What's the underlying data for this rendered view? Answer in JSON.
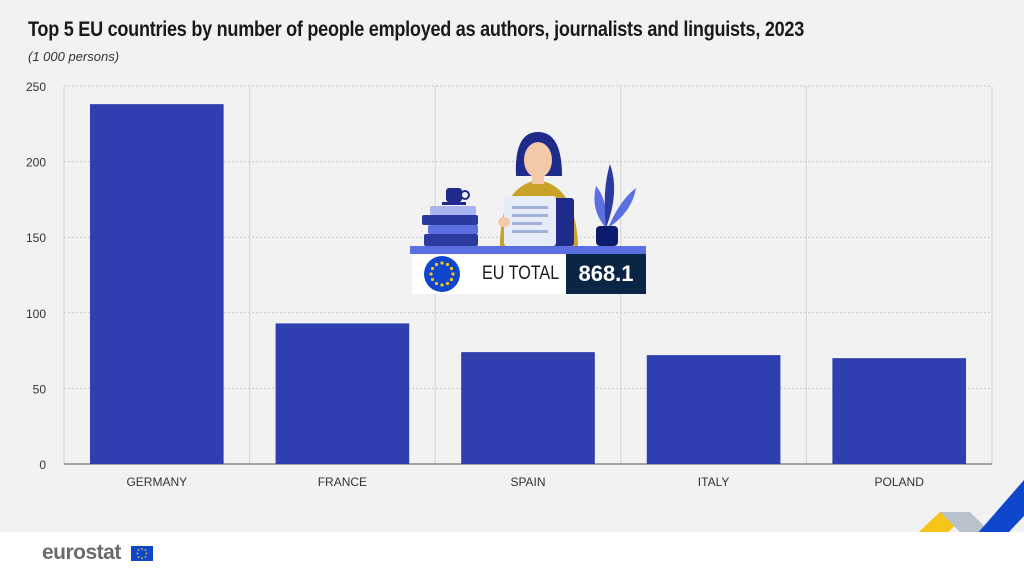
{
  "title": "Top 5 EU countries by number of people employed as authors, journalists and linguists, 2023",
  "subtitle": "(1 000 persons)",
  "chart_data": {
    "type": "bar",
    "title": "Top 5 EU countries by number of people employed as authors, journalists and linguists, 2023",
    "ylabel": "1 000 persons",
    "xlabel": "",
    "categories": [
      "GERMANY",
      "FRANCE",
      "SPAIN",
      "ITALY",
      "POLAND"
    ],
    "values": [
      238,
      93,
      74,
      72,
      70
    ],
    "ylim": [
      0,
      250
    ],
    "yticks": [
      0,
      50,
      100,
      150,
      200,
      250
    ],
    "grid": true,
    "bar_color": "#2e3fb0"
  },
  "eu_total": {
    "label": "EU TOTAL",
    "value": "868.1"
  },
  "logo": {
    "text": "eurostat"
  },
  "colors": {
    "bar": "#2e3fb0",
    "background": "#f2f2f2",
    "eu_blue": "#0e47cb",
    "dark_navy": "#0b2545",
    "accent_yellow": "#f5c518"
  }
}
